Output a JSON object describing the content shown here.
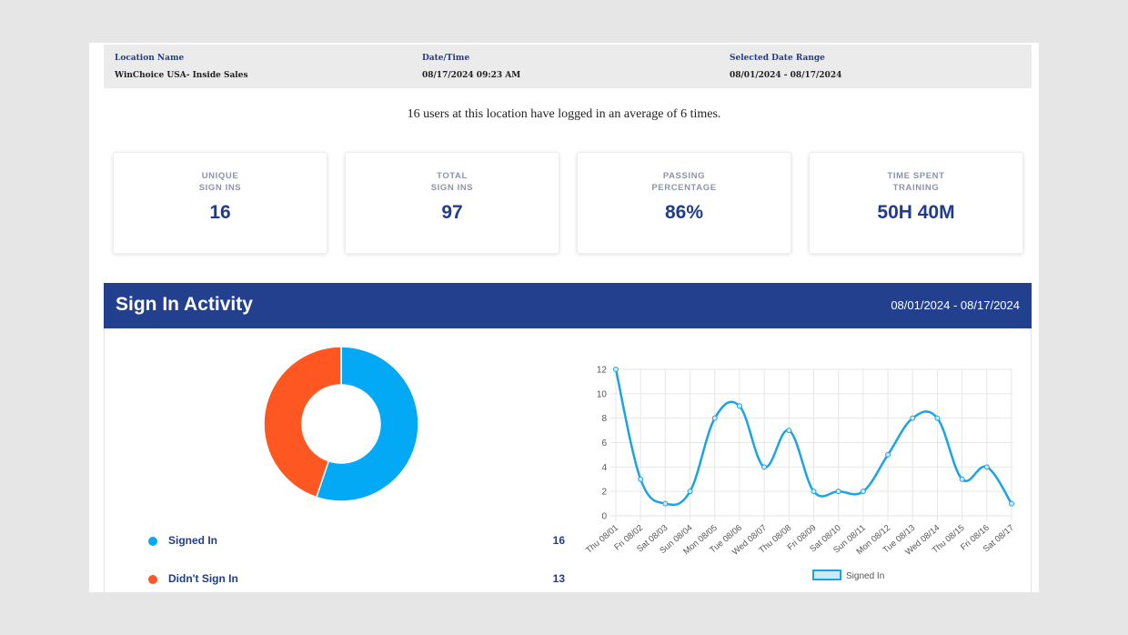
{
  "header": {
    "location": {
      "label": "Location Name",
      "value": "WinChoice USA- Inside Sales"
    },
    "datetime": {
      "label": "Date/Time",
      "value": "08/17/2024 09:23 AM"
    },
    "range": {
      "label": "Selected Date Range",
      "value": "08/01/2024 - 08/17/2024"
    }
  },
  "summary": "16 users at this location have logged in an average of 6 times.",
  "stats": [
    {
      "label": "UNIQUE\nSIGN INS",
      "value": "16"
    },
    {
      "label": "TOTAL\nSIGN INS",
      "value": "97"
    },
    {
      "label": "PASSING\nPERCENTAGE",
      "value": "86%"
    },
    {
      "label": "TIME SPENT\nTRAINING",
      "value": "50H 40M"
    }
  ],
  "activity": {
    "title": "Sign In Activity",
    "range": "08/01/2024 - 08/17/2024",
    "legend": [
      {
        "label": "Signed In",
        "value": "16",
        "color": "#03a9f4"
      },
      {
        "label": "Didn't Sign In",
        "value": "13",
        "color": "#ff5722"
      }
    ]
  },
  "chart_data": [
    {
      "type": "pie",
      "style": "donut",
      "categories": [
        "Signed In",
        "Didn't Sign In"
      ],
      "values": [
        16,
        13
      ],
      "colors": [
        "#03a9f4",
        "#ff5722"
      ]
    },
    {
      "type": "line",
      "categories": [
        "Thu 08/01",
        "Fri 08/02",
        "Sat 08/03",
        "Sun 08/04",
        "Mon 08/05",
        "Tue 08/06",
        "Wed 08/07",
        "Thu 08/08",
        "Fri 08/09",
        "Sat 08/10",
        "Sun 08/11",
        "Mon 08/12",
        "Tue 08/13",
        "Wed 08/14",
        "Thu 08/15",
        "Fri 08/16",
        "Sat 08/17"
      ],
      "series": [
        {
          "name": "Signed In",
          "values": [
            12,
            3,
            1,
            2,
            8,
            9,
            4,
            7,
            2,
            2,
            2,
            5,
            8,
            8,
            3,
            4,
            1
          ],
          "color": "#1aa3e8"
        }
      ],
      "yticks": [
        0,
        2,
        4,
        6,
        8,
        10,
        12
      ],
      "ylim": [
        0,
        12
      ],
      "grid": true,
      "legend_position": "bottom"
    }
  ]
}
